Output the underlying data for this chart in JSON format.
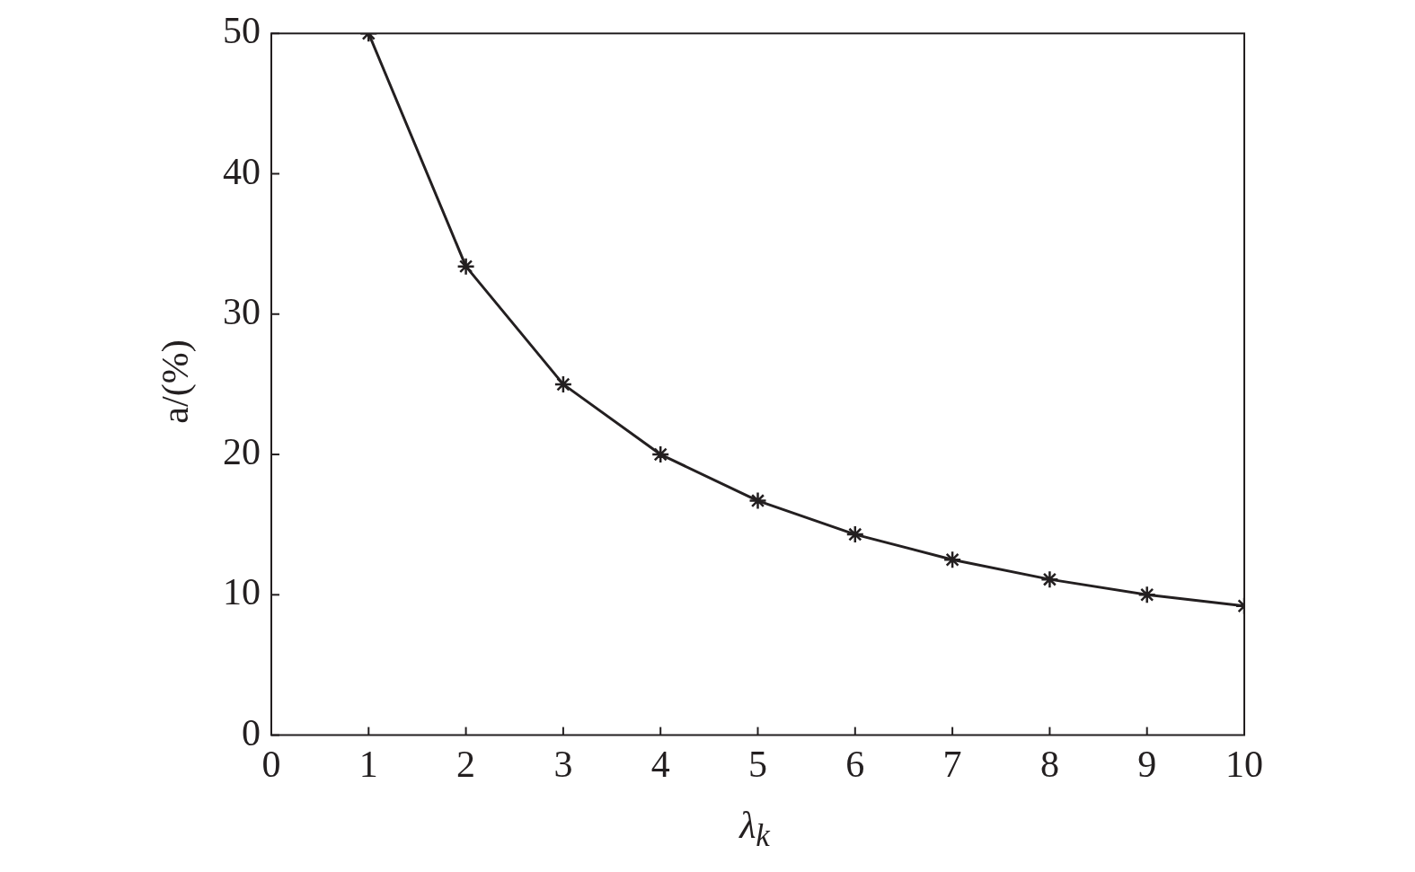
{
  "chart_data": {
    "type": "line",
    "xlabel": "λ$_{k}$",
    "ylabel": "a/(%)",
    "x": [
      1,
      2,
      3,
      4,
      5,
      6,
      7,
      8,
      9,
      10
    ],
    "series": [
      {
        "color": "#231f20",
        "values": [
          50,
          33.4,
          25,
          20,
          16.7,
          14.3,
          12.5,
          11.1,
          10,
          9.2
        ]
      }
    ],
    "xlim": [
      0,
      10
    ],
    "xticks": [
      0,
      1,
      2,
      3,
      4,
      5,
      6,
      7,
      8,
      9,
      10
    ],
    "ylim": [
      0,
      50
    ],
    "yticks": [
      0,
      10,
      20,
      30,
      40,
      50
    ],
    "marker": "cross",
    "line_style": "solid",
    "legend": false
  }
}
